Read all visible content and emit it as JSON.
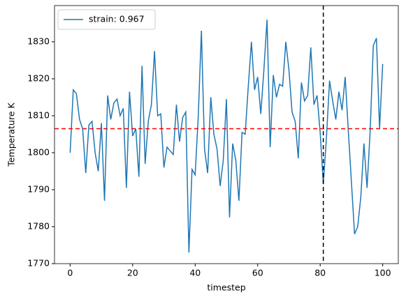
{
  "chart_data": {
    "type": "line",
    "xlabel": "timestep",
    "ylabel": "Temperature K",
    "x": [
      0,
      1,
      2,
      3,
      4,
      5,
      6,
      7,
      8,
      9,
      10,
      11,
      12,
      13,
      14,
      15,
      16,
      17,
      18,
      19,
      20,
      21,
      22,
      23,
      24,
      25,
      26,
      27,
      28,
      29,
      30,
      31,
      32,
      33,
      34,
      35,
      36,
      37,
      38,
      39,
      40,
      41,
      42,
      43,
      44,
      45,
      46,
      47,
      48,
      49,
      50,
      51,
      52,
      53,
      54,
      55,
      56,
      57,
      58,
      59,
      60,
      61,
      62,
      63,
      64,
      65,
      66,
      67,
      68,
      69,
      70,
      71,
      72,
      73,
      74,
      75,
      76,
      77,
      78,
      79,
      80,
      81,
      82,
      83,
      84,
      85,
      86,
      87,
      88,
      89,
      90,
      91,
      92,
      93,
      94,
      95,
      96,
      97,
      98,
      99,
      100
    ],
    "series": [
      {
        "name": "strain: 0.967",
        "color": "#1f77b4",
        "values": [
          1800,
          1817,
          1816,
          1809,
          1806.5,
          1794.5,
          1807.5,
          1808.5,
          1800,
          1795,
          1808,
          1787,
          1815.5,
          1809,
          1813.5,
          1814.5,
          1810,
          1812,
          1790.5,
          1816.5,
          1804.5,
          1806.5,
          1793.5,
          1823.5,
          1797,
          1808.5,
          1813,
          1827.5,
          1810,
          1810.5,
          1796,
          1801.5,
          1800.5,
          1799.5,
          1813,
          1803,
          1809.5,
          1811,
          1773,
          1795.5,
          1794,
          1810,
          1833,
          1801,
          1794.5,
          1815,
          1805,
          1801,
          1791,
          1798,
          1814.5,
          1782.5,
          1802.5,
          1798,
          1787,
          1805.5,
          1805,
          1818,
          1830,
          1817,
          1820.5,
          1810.5,
          1822.5,
          1836,
          1801.5,
          1821,
          1815,
          1818.5,
          1818,
          1830,
          1822.5,
          1811,
          1808.5,
          1798.5,
          1819,
          1814,
          1815.5,
          1828.5,
          1813,
          1815.5,
          1805.5,
          1791.5,
          1804,
          1819.5,
          1814,
          1809,
          1816.5,
          1811.5,
          1820.5,
          1806,
          1792,
          1778,
          1780,
          1788,
          1802.5,
          1790.5,
          1806,
          1829,
          1831,
          1806.5,
          1824
        ]
      }
    ],
    "hlines": [
      {
        "value": 1806.5,
        "color": "#ff0000"
      }
    ],
    "vlines": [
      {
        "value": 81,
        "color": "#000000"
      }
    ],
    "xlim": [
      -5,
      105
    ],
    "ylim": [
      1770,
      1839.8
    ],
    "xticks": [
      0,
      20,
      40,
      60,
      80,
      100
    ],
    "yticks": [
      1770,
      1780,
      1790,
      1800,
      1810,
      1820,
      1830
    ],
    "legend": "upper left"
  }
}
